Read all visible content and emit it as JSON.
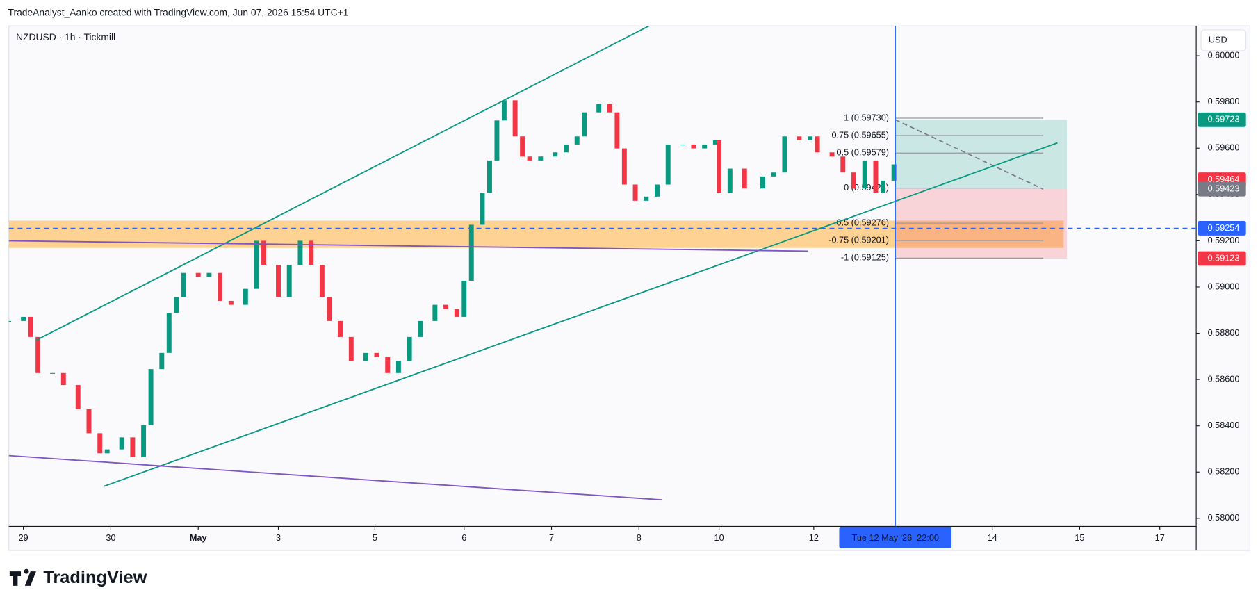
{
  "header": {
    "attribution": "TradeAnalyst_Aanko created with TradingView.com, Jun 07, 2026 15:54 UTC+1",
    "symbol": "NZDUSD · 1h · Tickmill",
    "currency": "USD",
    "logo": "TradingView"
  },
  "chart_data": {
    "type": "candlestick",
    "x": [
      0,
      4,
      6,
      8,
      12,
      15,
      19,
      22,
      25,
      27,
      31,
      34,
      37,
      39,
      42,
      44,
      46,
      48,
      52,
      55,
      58,
      61,
      65,
      68,
      70,
      74,
      77,
      80,
      83,
      86,
      88,
      91,
      94,
      98,
      101,
      104,
      107,
      110,
      113,
      117,
      120,
      123,
      125,
      127,
      130,
      132,
      134,
      136,
      139,
      141,
      143,
      146,
      150,
      153,
      156,
      158,
      162,
      165,
      167,
      169,
      172,
      175,
      178,
      181,
      185,
      188,
      191,
      194,
      195,
      198,
      202,
      207,
      210,
      213,
      217,
      220,
      222,
      226,
      229,
      232,
      235,
      238,
      240,
      243
    ],
    "values": [
      0.58853,
      0.58871,
      0.58784,
      0.58628,
      0.58628,
      0.58576,
      0.58472,
      0.58368,
      0.58281,
      0.58298,
      0.5835,
      0.58264,
      0.58402,
      0.58645,
      0.58715,
      0.58888,
      0.58957,
      0.59061,
      0.59044,
      0.59061,
      0.5894,
      0.58923,
      0.58992,
      0.592,
      0.59096,
      0.58957,
      0.59096,
      0.592,
      0.59096,
      0.58957,
      0.58853,
      0.58784,
      0.5868,
      0.58715,
      0.58697,
      0.58628,
      0.5868,
      0.58784,
      0.58853,
      0.58923,
      0.58905,
      0.58871,
      0.59027,
      0.59269,
      0.59408,
      0.59547,
      0.5972,
      0.59807,
      0.59651,
      0.59564,
      0.59547,
      0.59564,
      0.59582,
      0.59616,
      0.59651,
      0.59755,
      0.5979,
      0.59755,
      0.59599,
      0.59443,
      0.59373,
      0.59391,
      0.59443,
      0.59616,
      0.59616,
      0.59599,
      0.59616,
      0.59634,
      0.59408,
      0.59512,
      0.59426,
      0.59478,
      0.59495,
      0.59651,
      0.59634,
      0.59651,
      0.59582,
      0.59564,
      0.59495,
      0.59426,
      0.59547,
      0.59408,
      0.5946,
      0.5953
    ],
    "up_color": "#089981",
    "down_color": "#f23645",
    "xlim": [
      0,
      326
    ],
    "xticks": [
      {
        "value": 4,
        "label": "29"
      },
      {
        "value": 28,
        "label": "30"
      },
      {
        "value": 52,
        "label": "May"
      },
      {
        "value": 74,
        "label": "3"
      },
      {
        "value": 100.5,
        "label": "5"
      },
      {
        "value": 125,
        "label": "6"
      },
      {
        "value": 149,
        "label": "7"
      },
      {
        "value": 173,
        "label": "8"
      },
      {
        "value": 195,
        "label": "10"
      },
      {
        "value": 221,
        "label": "12"
      },
      {
        "value": 270,
        "label": "14"
      },
      {
        "value": 294,
        "label": "15"
      },
      {
        "value": 316,
        "label": "17"
      }
    ],
    "ylim": [
      0.57965,
      0.60129
    ],
    "yticks": [
      {
        "value": 0.58,
        "label": "0.58000"
      },
      {
        "value": 0.582,
        "label": "0.58200"
      },
      {
        "value": 0.584,
        "label": "0.58400"
      },
      {
        "value": 0.586,
        "label": "0.58600"
      },
      {
        "value": 0.588,
        "label": "0.58800"
      },
      {
        "value": 0.59,
        "label": "0.59000"
      },
      {
        "value": 0.592,
        "label": "0.59200"
      },
      {
        "value": 0.594,
        "label": "0.59400"
      },
      {
        "value": 0.596,
        "label": "0.59600"
      },
      {
        "value": 0.598,
        "label": "0.59800"
      },
      {
        "value": 0.6,
        "label": "0.60000"
      }
    ],
    "zone": {
      "x": [
        0,
        289.6
      ],
      "y": [
        0.59169,
        0.59287
      ],
      "color": "#ffb74d"
    },
    "hline": {
      "value": 0.59254,
      "color": "#2962ff"
    },
    "trend_lines": [
      {
        "color": "#089981",
        "points": [
          [
            7.5,
            0.5877
          ],
          [
            175.8,
            0.60129
          ]
        ]
      },
      {
        "color": "#089981",
        "points": [
          [
            26.2,
            0.58139
          ],
          [
            287.9,
            0.59623
          ]
        ]
      },
      {
        "color": "#7e57c2",
        "points": [
          [
            0,
            0.58271
          ],
          [
            179.3,
            0.5808
          ]
        ]
      },
      {
        "color": "#7e57c2",
        "points": [
          [
            0,
            0.592
          ],
          [
            219.4,
            0.59155
          ]
        ]
      }
    ],
    "position": {
      "x": [
        243.4,
        290.5
      ],
      "target": 0.59723,
      "entry": 0.59423,
      "stop": 0.59123
    },
    "fib_x": [
      243.4,
      284
    ],
    "fib_levels": [
      {
        "value": 0.5973,
        "label": "1 (0.59730)"
      },
      {
        "value": 0.59655,
        "label": "0.75 (0.59655)"
      },
      {
        "value": 0.59579,
        "label": "0.5 (0.59579)"
      },
      {
        "value": 0.594275,
        "label": "0 (0.59428)"
      },
      {
        "value": 0.59276,
        "label": "-0.5 (0.59276)"
      },
      {
        "value": 0.59201,
        "label": "-0.75 (0.59201)"
      },
      {
        "value": 0.59125,
        "label": "-1 (0.59125)"
      }
    ],
    "price_tags": [
      {
        "value": 0.59723,
        "color": "#089981"
      },
      {
        "value": 0.59464,
        "color": "#f23645"
      },
      {
        "value": 0.59423,
        "color": "#787b86"
      },
      {
        "value": 0.59254,
        "color": "#2962ff"
      },
      {
        "value": 0.59123,
        "color": "#f23645"
      }
    ],
    "crosshair": {
      "x": 243.4,
      "label": "Tue 12 May '26  22:00",
      "color": "#2962ff"
    }
  }
}
